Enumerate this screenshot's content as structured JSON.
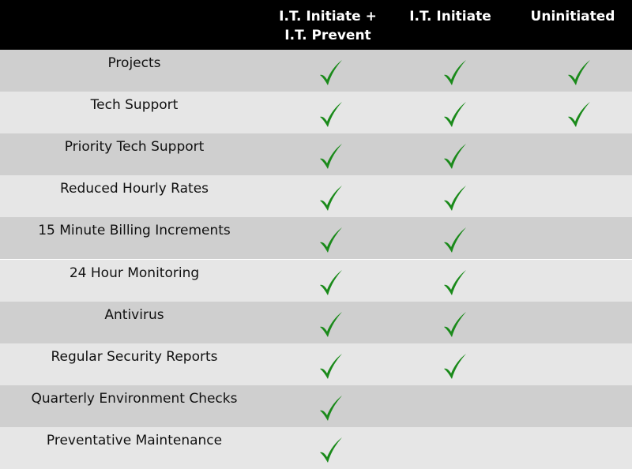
{
  "header": {
    "columns": [
      {
        "lines": [
          "I.T. Initiate +",
          "I.T. Prevent"
        ]
      },
      {
        "lines": [
          "I.T. Initiate"
        ]
      },
      {
        "lines": [
          "Uninitiated"
        ]
      }
    ]
  },
  "rows": [
    {
      "feature": "Projects",
      "checks": [
        true,
        true,
        true
      ]
    },
    {
      "feature": "Tech Support",
      "checks": [
        true,
        true,
        true
      ]
    },
    {
      "feature": "Priority Tech Support",
      "checks": [
        true,
        true,
        false
      ]
    },
    {
      "feature": "Reduced Hourly Rates",
      "checks": [
        true,
        true,
        false
      ]
    },
    {
      "feature": "15 Minute Billing Increments",
      "checks": [
        true,
        true,
        false
      ]
    },
    {
      "feature": "24 Hour Monitoring",
      "checks": [
        true,
        true,
        false
      ]
    },
    {
      "feature": "Antivirus",
      "checks": [
        true,
        true,
        false
      ]
    },
    {
      "feature": "Regular Security Reports",
      "checks": [
        true,
        true,
        false
      ]
    },
    {
      "feature": "Quarterly Environment Checks",
      "checks": [
        true,
        false,
        false
      ]
    },
    {
      "feature": "Preventative Maintenance",
      "checks": [
        true,
        false,
        false
      ]
    }
  ],
  "colors": {
    "header_bg": "#000000",
    "row_dark": "#cfcfcf",
    "row_light": "#e6e6e6",
    "check": "#1a8a1a"
  },
  "icons": {
    "check": "checkmark-icon"
  }
}
